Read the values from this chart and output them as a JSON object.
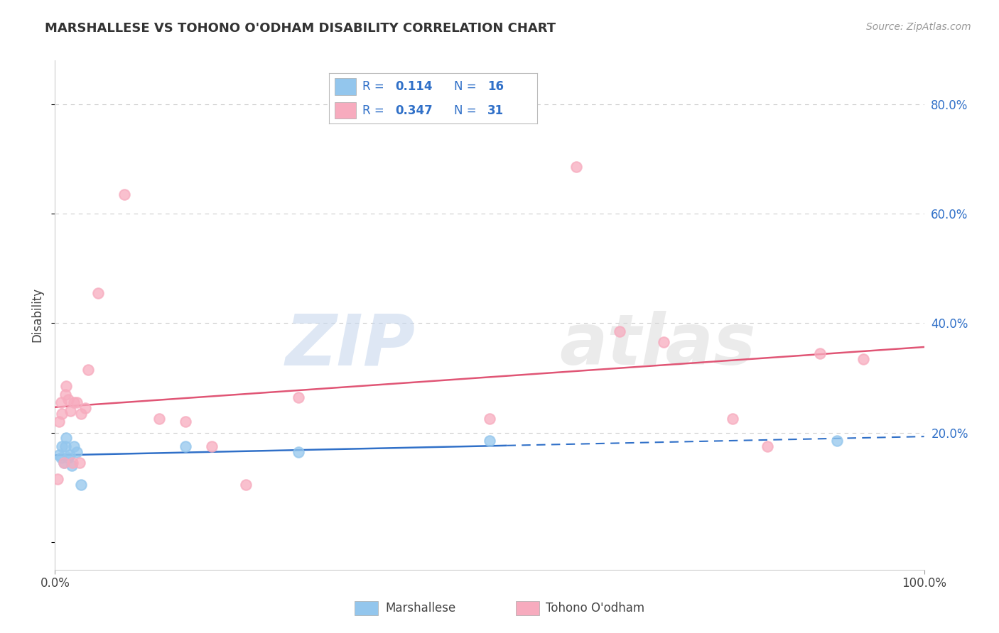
{
  "title": "MARSHALLESE VS TOHONO O'ODHAM DISABILITY CORRELATION CHART",
  "source": "Source: ZipAtlas.com",
  "ylabel": "Disability",
  "xlim": [
    0,
    1.0
  ],
  "ylim": [
    -0.05,
    0.88
  ],
  "marshallese_color": "#93C6ED",
  "tohono_color": "#F7ABBE",
  "trend_blue": "#3070C8",
  "trend_pink": "#E05575",
  "R_marshallese": "0.114",
  "N_marshallese": "16",
  "R_tohono": "0.347",
  "N_tohono": "31",
  "marshallese_x": [
    0.005,
    0.007,
    0.008,
    0.01,
    0.012,
    0.013,
    0.015,
    0.017,
    0.019,
    0.022,
    0.025,
    0.03,
    0.15,
    0.28,
    0.5,
    0.9
  ],
  "marshallese_y": [
    0.16,
    0.155,
    0.175,
    0.145,
    0.175,
    0.19,
    0.155,
    0.16,
    0.14,
    0.175,
    0.165,
    0.105,
    0.175,
    0.165,
    0.185,
    0.185
  ],
  "tohono_x": [
    0.003,
    0.005,
    0.007,
    0.008,
    0.01,
    0.012,
    0.013,
    0.015,
    0.018,
    0.02,
    0.022,
    0.025,
    0.028,
    0.03,
    0.035,
    0.038,
    0.05,
    0.08,
    0.12,
    0.15,
    0.18,
    0.22,
    0.28,
    0.5,
    0.6,
    0.65,
    0.7,
    0.78,
    0.82,
    0.88,
    0.93
  ],
  "tohono_y": [
    0.115,
    0.22,
    0.255,
    0.235,
    0.145,
    0.27,
    0.285,
    0.26,
    0.24,
    0.145,
    0.255,
    0.255,
    0.145,
    0.235,
    0.245,
    0.315,
    0.455,
    0.635,
    0.225,
    0.22,
    0.175,
    0.105,
    0.265,
    0.225,
    0.685,
    0.385,
    0.365,
    0.225,
    0.175,
    0.345,
    0.335
  ],
  "watermark_zip": "ZIP",
  "watermark_atlas": "atlas",
  "background_color": "#FFFFFF",
  "legend_text_color": "#3070C8",
  "grid_color": "#CCCCCC",
  "ytick_color": "#3070C8",
  "title_fontsize": 13,
  "source_fontsize": 10,
  "axis_fontsize": 12,
  "legend_fontsize": 12
}
